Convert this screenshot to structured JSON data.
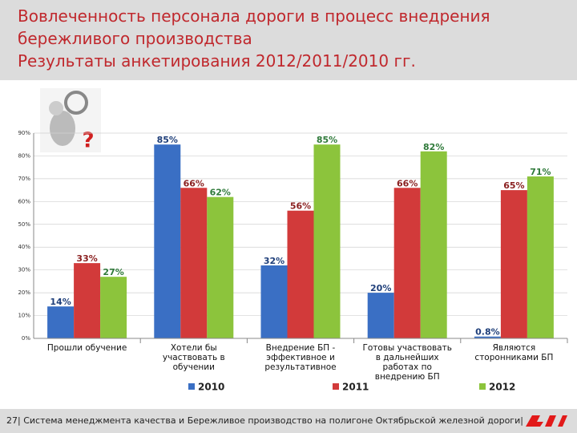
{
  "header": {
    "title": [
      "Вовлеченность персонала дороги в процесс внедрения",
      "бережливого производства",
      "Результаты анкетирования 2012/2011/2010 гг."
    ]
  },
  "chart_data": {
    "type": "bar",
    "categories": [
      "Прошли обучение",
      "Хотели бы участвовать в обучении",
      "Внедрение БП - эффективное и результативное",
      "Готовы участвовать в дальнейших работах по внедрению БП",
      "Являются сторонниками БП"
    ],
    "series": [
      {
        "name": "2010",
        "color": "#3a6fc4",
        "label_color": "#1f3f7a",
        "values": [
          14,
          85,
          32,
          20,
          0.8
        ],
        "value_labels": [
          "14%",
          "85%",
          "32%",
          "20%",
          "0.8%"
        ]
      },
      {
        "name": "2011",
        "color": "#d23a3a",
        "label_color": "#8a1f1f",
        "values": [
          33,
          66,
          56,
          66,
          65
        ],
        "value_labels": [
          "33%",
          "66%",
          "56%",
          "66%",
          "65%"
        ]
      },
      {
        "name": "2012",
        "color": "#8cc43c",
        "label_color": "#2f7a3a",
        "values": [
          27,
          62,
          85,
          82,
          71
        ],
        "value_labels": [
          "27%",
          "62%",
          "85%",
          "82%",
          "71%"
        ]
      }
    ],
    "ylim": [
      0,
      90
    ],
    "yticks": [
      {
        "value": 0,
        "label": "0%"
      },
      {
        "value": 10,
        "label": "10%"
      },
      {
        "value": 20,
        "label": "20%"
      },
      {
        "value": 30,
        "label": "30%"
      },
      {
        "value": 40,
        "label": "40%"
      },
      {
        "value": 50,
        "label": "50%"
      },
      {
        "value": 60,
        "label": "60%"
      },
      {
        "value": 70,
        "label": "70%"
      },
      {
        "value": 80,
        "label": "80%"
      },
      {
        "value": 90,
        "label": "90%"
      }
    ],
    "grid": true
  },
  "footer": {
    "text": "27| Система менеджмента качества и Бережливое производство на полигоне Октябрьской железной дороги|"
  }
}
